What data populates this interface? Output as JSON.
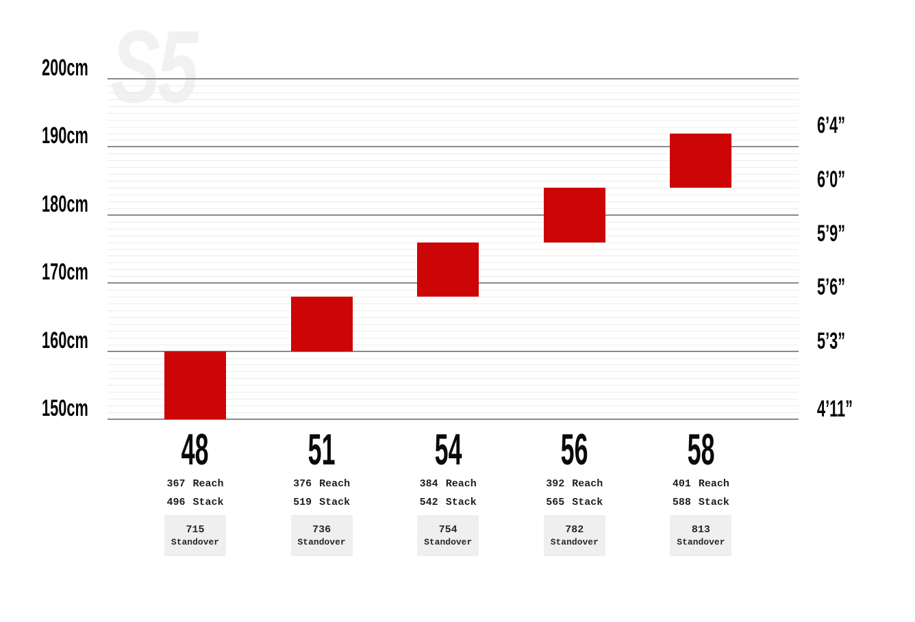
{
  "watermark": "S5",
  "colors": {
    "bar_red": "#cc0506",
    "major_gridline": "#8a8a8a",
    "minor_gridline": "#ececec",
    "standover_box_bg": "#efefef",
    "text": "#0a0a0a",
    "watermark": "#f1f1f1"
  },
  "chart_data": {
    "type": "bar",
    "title": "",
    "orientation": "vertical-range",
    "model_watermark": "S5",
    "grid": "on",
    "y_axis_left": {
      "unit": "cm",
      "range": [
        150,
        200
      ],
      "minor_step_cm": 1,
      "major_step_cm": 10,
      "labels": [
        {
          "text": "200cm",
          "cm": 200
        },
        {
          "text": "190cm",
          "cm": 190
        },
        {
          "text": "180cm",
          "cm": 180
        },
        {
          "text": "170cm",
          "cm": 170
        },
        {
          "text": "160cm",
          "cm": 160
        },
        {
          "text": "150cm",
          "cm": 150
        }
      ]
    },
    "y_axis_right": {
      "unit": "feet-inches",
      "labels": [
        {
          "text": "6’4”",
          "cm": 193.2
        },
        {
          "text": "6’0”",
          "cm": 185.2
        },
        {
          "text": "5’9”",
          "cm": 177.3
        },
        {
          "text": "5’6”",
          "cm": 169.4
        },
        {
          "text": "5’3”",
          "cm": 161.5
        },
        {
          "text": "4’11”",
          "cm": 151.5
        }
      ]
    },
    "reach_label": "Reach",
    "stack_label": "Stack",
    "standover_label": "Standover",
    "sizes": [
      {
        "label": "48",
        "rider_height_cm": [
          150,
          160
        ],
        "reach": "367",
        "stack": "496",
        "standover": "715"
      },
      {
        "label": "51",
        "rider_height_cm": [
          160,
          168
        ],
        "reach": "376",
        "stack": "519",
        "standover": "736"
      },
      {
        "label": "54",
        "rider_height_cm": [
          168,
          176
        ],
        "reach": "384",
        "stack": "542",
        "standover": "754"
      },
      {
        "label": "56",
        "rider_height_cm": [
          176,
          184
        ],
        "reach": "392",
        "stack": "565",
        "standover": "782"
      },
      {
        "label": "58",
        "rider_height_cm": [
          184,
          192
        ],
        "reach": "401",
        "stack": "588",
        "standover": "813"
      }
    ]
  }
}
